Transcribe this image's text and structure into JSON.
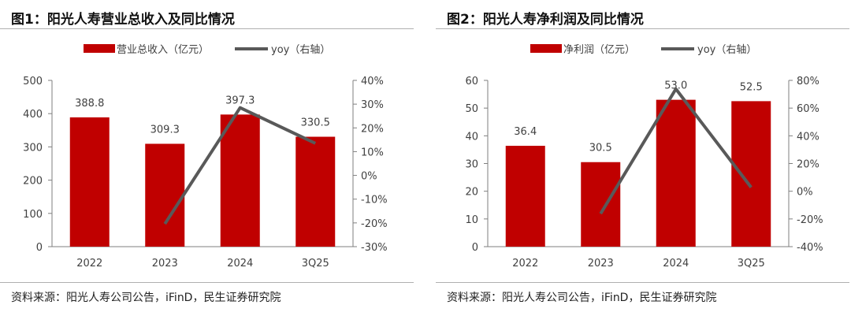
{
  "colors": {
    "bar": "#c00000",
    "line": "#595959",
    "axis": "#7f7f7f",
    "text": "#404040"
  },
  "source_text": "资料来源：阳光人寿公司公告，iFinD，民生证券研究院",
  "chart_data": [
    {
      "type": "bar+line",
      "title": "图1：阳光人寿营业总收入及同比情况",
      "categories": [
        "2022",
        "2023",
        "2024",
        "3Q25"
      ],
      "series": [
        {
          "name": "营业总收入（亿元）",
          "kind": "bar",
          "axis": "left",
          "values": [
            388.8,
            309.3,
            397.3,
            330.5
          ],
          "labels": [
            "388.8",
            "309.3",
            "397.3",
            "330.5"
          ]
        },
        {
          "name": "yoy（右轴）",
          "kind": "line",
          "axis": "right",
          "values": [
            null,
            -20.4,
            28.5,
            13.5
          ]
        }
      ],
      "left_axis": {
        "min": 0,
        "max": 500,
        "ticks": [
          0,
          100,
          200,
          300,
          400,
          500
        ],
        "tick_labels": [
          "0",
          "100",
          "200",
          "300",
          "400",
          "500"
        ]
      },
      "right_axis": {
        "min": -30,
        "max": 40,
        "ticks": [
          -30,
          -20,
          -10,
          0,
          10,
          20,
          30,
          40
        ],
        "tick_labels": [
          "-30%",
          "-20%",
          "-10%",
          "0%",
          "10%",
          "20%",
          "30%",
          "40%"
        ]
      }
    },
    {
      "type": "bar+line",
      "title": "图2：阳光人寿净利润及同比情况",
      "categories": [
        "2022",
        "2023",
        "2024",
        "3Q25"
      ],
      "series": [
        {
          "name": "净利润（亿元）",
          "kind": "bar",
          "axis": "left",
          "values": [
            36.4,
            30.5,
            53.0,
            52.5
          ],
          "labels": [
            "36.4",
            "30.5",
            "53.0",
            "52.5"
          ]
        },
        {
          "name": "yoy（右轴）",
          "kind": "line",
          "axis": "right",
          "values": [
            null,
            -16.2,
            73.8,
            2.8
          ]
        }
      ],
      "left_axis": {
        "min": 0,
        "max": 60,
        "ticks": [
          0,
          10,
          20,
          30,
          40,
          50,
          60
        ],
        "tick_labels": [
          "0",
          "10",
          "20",
          "30",
          "40",
          "50",
          "60"
        ]
      },
      "right_axis": {
        "min": -40,
        "max": 80,
        "ticks": [
          -40,
          -20,
          0,
          20,
          40,
          60,
          80
        ],
        "tick_labels": [
          "-40%",
          "-20%",
          "0%",
          "20%",
          "40%",
          "60%",
          "80%"
        ]
      }
    }
  ]
}
